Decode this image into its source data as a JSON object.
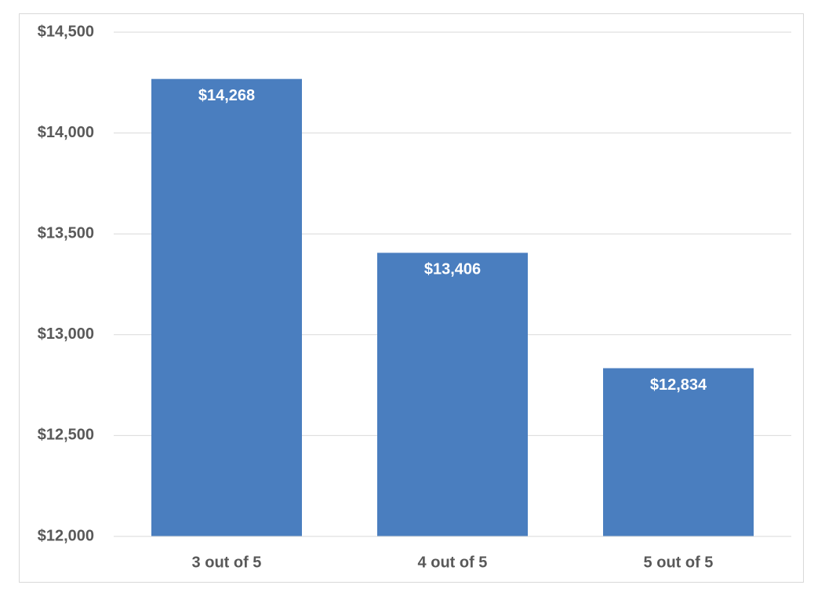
{
  "chart_data": {
    "type": "bar",
    "categories": [
      "3 out of 5",
      "4 out of 5",
      "5 out of 5"
    ],
    "values": [
      14268,
      13406,
      12834
    ],
    "value_labels": [
      "$14,268",
      "$13,406",
      "$12,834"
    ],
    "color": "#4a7ebf",
    "ylim": [
      12000,
      14500
    ],
    "yticks": [
      {
        "value": 12000,
        "label": "$12,000"
      },
      {
        "value": 12500,
        "label": "$12,500"
      },
      {
        "value": 13000,
        "label": "$13,000"
      },
      {
        "value": 13500,
        "label": "$13,500"
      },
      {
        "value": 14000,
        "label": "$14,000"
      },
      {
        "value": 14500,
        "label": "$14,500"
      }
    ],
    "grid": true
  }
}
